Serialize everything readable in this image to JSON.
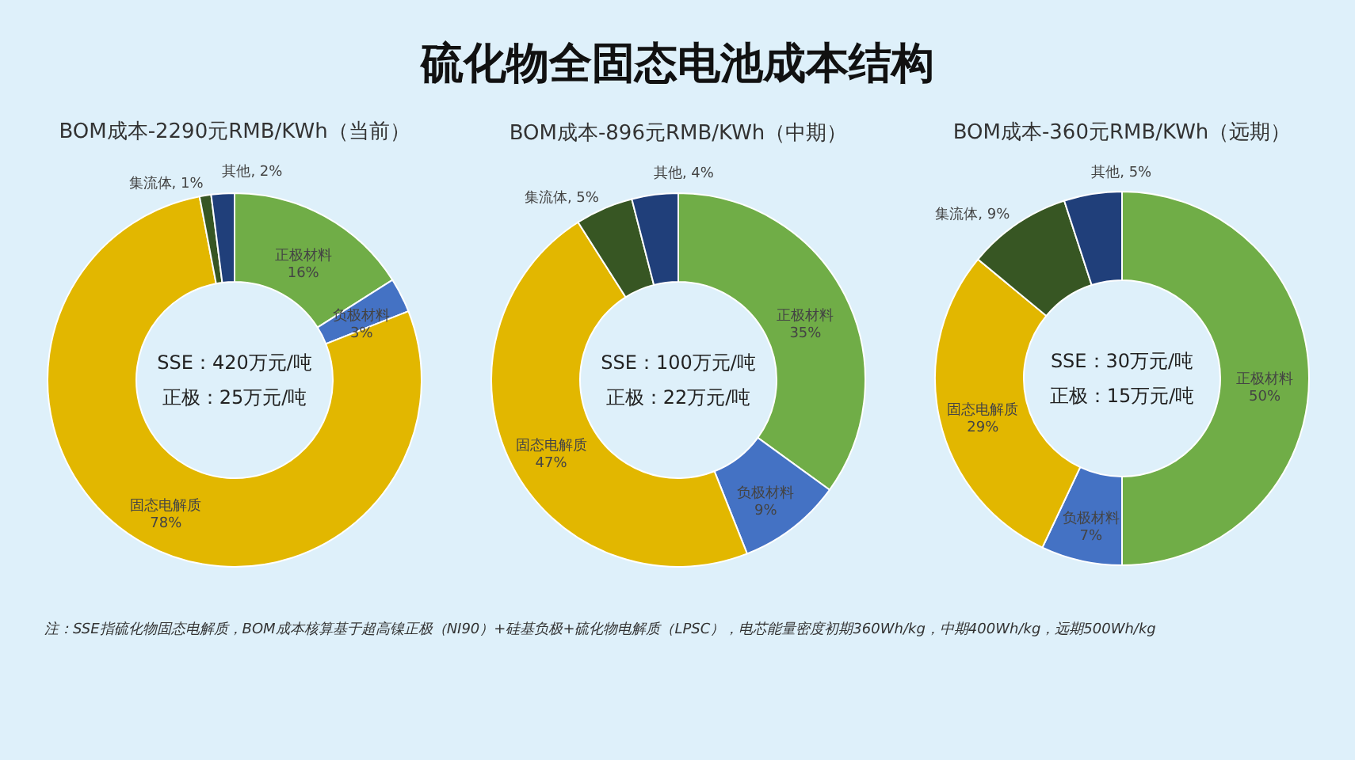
{
  "chart_data": [
    {
      "type": "donut",
      "title": "BOM成本-2290元RMB/KWh（当前）",
      "categories": [
        "正极材料",
        "负极材料",
        "固态电解质",
        "集流体",
        "其他"
      ],
      "values": [
        16,
        3,
        78,
        1,
        2
      ],
      "value_labels": [
        "16%",
        "3%",
        "78%",
        "1%",
        "2%"
      ],
      "colors": [
        "#70ad47",
        "#4472c4",
        "#e2b700",
        "#375623",
        "#203f7a"
      ],
      "legend": false,
      "annotations": [
        "硫化物全固态电池成本结构",
        "SSE：420万元/吨",
        "正极：25万元/吨",
        "注：SSE指硫化物固态电解质，BOM成本核算基于超高镍正极（NI90）+硅基负极+硫化物电解质（LPSC），电芯能量密度初期360Wh/kg，中期400Wh/kg，远期500Wh/kg"
      ]
    },
    {
      "type": "donut",
      "title": "BOM成本-896元RMB/KWh（中期）",
      "categories": [
        "正极材料",
        "负极材料",
        "固态电解质",
        "集流体",
        "其他"
      ],
      "values": [
        35,
        9,
        47,
        5,
        4
      ],
      "value_labels": [
        "35%",
        "9%",
        "47%",
        "5%",
        "4%"
      ],
      "colors": [
        "#70ad47",
        "#4472c4",
        "#e2b700",
        "#375623",
        "#203f7a"
      ],
      "legend": false,
      "annotations": [
        "SSE：100万元/吨",
        "正极：22万元/吨"
      ]
    },
    {
      "type": "donut",
      "title": "BOM成本-360元RMB/KWh（远期）",
      "categories": [
        "正极材料",
        "负极材料",
        "固态电解质",
        "集流体",
        "其他"
      ],
      "values": [
        50,
        7,
        29,
        9,
        5
      ],
      "value_labels": [
        "50%",
        "7%",
        "29%",
        "9%",
        "5%"
      ],
      "colors": [
        "#70ad47",
        "#4472c4",
        "#e2b700",
        "#375623",
        "#203f7a"
      ],
      "legend": false,
      "annotations": [
        "SSE：30万元/吨",
        "正极：15万元/吨"
      ]
    }
  ]
}
